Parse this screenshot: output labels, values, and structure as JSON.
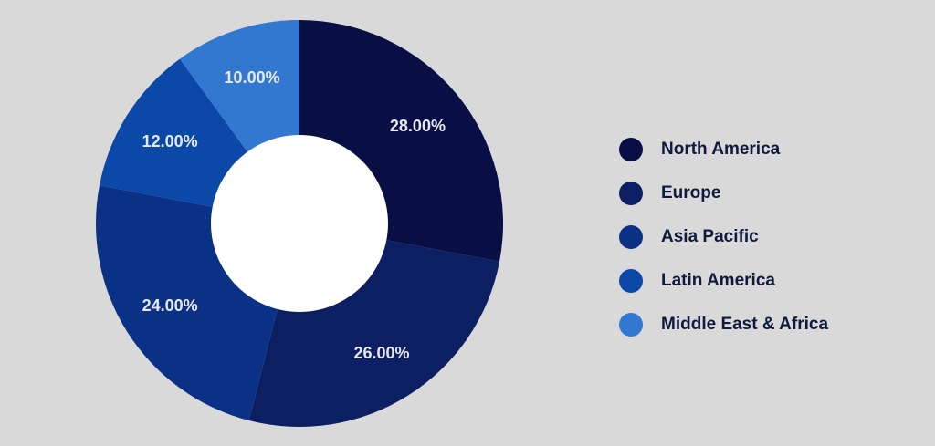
{
  "chart_data": {
    "type": "pie",
    "donut": true,
    "unit": "%",
    "slices": [
      {
        "label": "North America",
        "value": 28.0,
        "display": "28.00%",
        "color": "#090f45"
      },
      {
        "label": "Europe",
        "value": 26.0,
        "display": "26.00%",
        "color": "#0c1f62"
      },
      {
        "label": "Asia Pacific",
        "value": 24.0,
        "display": "24.00%",
        "color": "#0b3187"
      },
      {
        "label": "Latin America",
        "value": 12.0,
        "display": "12.00%",
        "color": "#0b48a8"
      },
      {
        "label": "Middle East & Africa",
        "value": 10.0,
        "display": "10.00%",
        "color": "#3278d0"
      }
    ],
    "legend_position": "right"
  },
  "colors": {
    "background": "#d9d9d9",
    "hole": "#ffffff"
  }
}
